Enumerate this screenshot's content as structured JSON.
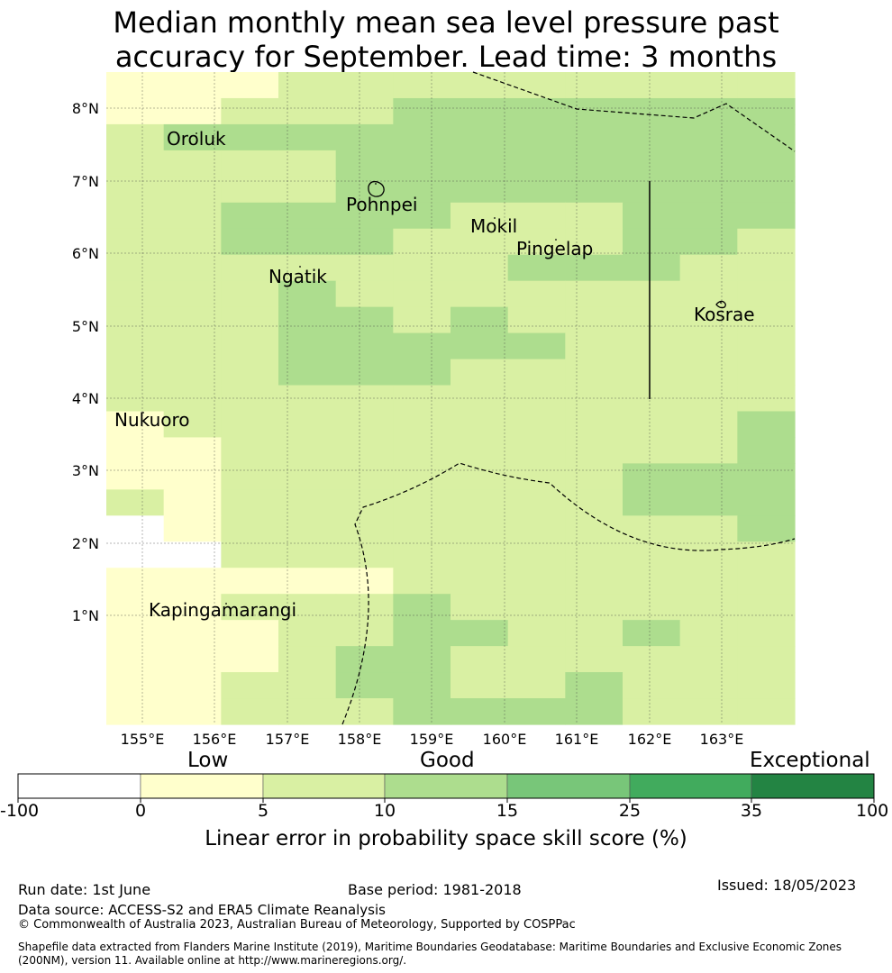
{
  "title": {
    "line1": "Median monthly mean sea level pressure past",
    "line2": "accuracy for September. Lead time: 3 months"
  },
  "map": {
    "lat_ticks": [
      "8°N",
      "7°N",
      "6°N",
      "5°N",
      "4°N",
      "3°N",
      "2°N",
      "1°N"
    ],
    "lon_ticks": [
      "155°E",
      "156°E",
      "157°E",
      "158°E",
      "159°E",
      "160°E",
      "161°E",
      "162°E",
      "163°E"
    ],
    "places": [
      {
        "name": "Oroluk"
      },
      {
        "name": "Pohnpei"
      },
      {
        "name": "Mokil"
      },
      {
        "name": "Pingelap"
      },
      {
        "name": "Ngatik"
      },
      {
        "name": "Kosrae"
      },
      {
        "name": "Nukuoro"
      },
      {
        "name": "Kapingamarangi"
      }
    ],
    "grid_rows": [
      "111222222222",
      "112223333333",
      "233333333333",
      "222233333333",
      "222233333333",
      "223333222333",
      "223332222332",
      "222222233322",
      "222322222222",
      "222332322222",
      "222333332222",
      "222333222222",
      "222222222222",
      "122222222223",
      "112222222223",
      "112222222333",
      "212222222333",
      "012222222223",
      "002222222222",
      "111112222222",
      "112223222222",
      "111223322322",
      "111233222222",
      "112233223222",
      "112223333222"
    ]
  },
  "colorbar": {
    "categories": [
      "Low",
      "Good",
      "Exceptional"
    ],
    "ticks": [
      "-100",
      "0",
      "5",
      "10",
      "15",
      "25",
      "35",
      "100"
    ],
    "colors": [
      "#ffffff",
      "#ffffcc",
      "#d9f0a3",
      "#addd8e",
      "#78c679",
      "#41ab5d",
      "#238443"
    ],
    "label": "Linear error in probability space skill score (%)"
  },
  "footer": {
    "run_date": "Run date: 1st June",
    "base_period": "Base period: 1981-2018",
    "issued": "Issued: 18/05/2023",
    "data_source": "Data source: ACCESS-S2 and ERA5 Climate Reanalysis",
    "copyright": "© Commonwealth of Australia 2023, Australian Bureau of Meteorology, Supported by COSPPac",
    "shapefile_line1": "Shapefile data extracted from Flanders Marine Institute (2019), Maritime Boundaries Geodatabase: Maritime Boundaries and Exclusive Economic Zones",
    "shapefile_line2": "(200NM), version 11. Available online at http://www.marineregions.org/."
  }
}
